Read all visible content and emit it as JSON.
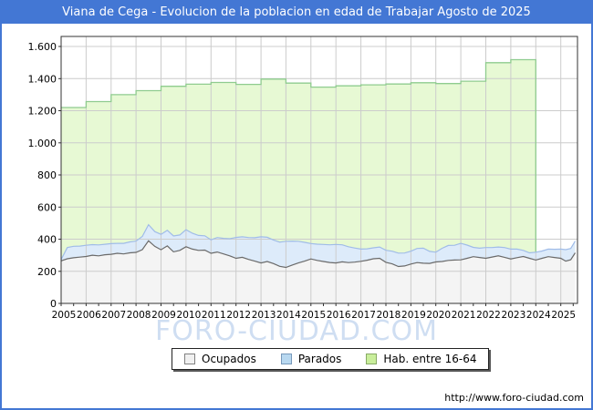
{
  "window": {
    "title": "Viana de Cega - Evolucion de la poblacion en edad de Trabajar Agosto de 2025"
  },
  "watermark": "FORO-CIUDAD.COM",
  "footer": {
    "url": "http://www.foro-ciudad.com"
  },
  "colors": {
    "frame_blue": "#4377d4",
    "grid": "#cccccc",
    "plot_border": "#333333",
    "hab_fill": "#e7f9d4",
    "hab_line": "#8fcc8f",
    "parados_fill": "#ddebfa",
    "parados_line": "#a0bce8",
    "ocupados_fill": "#f4f4f4",
    "ocupados_line": "#6a6a6a",
    "watermark_blue": "#cfdef2"
  },
  "legend": {
    "items": [
      {
        "label": "Ocupados",
        "fill": "#f0f0f0",
        "border": "#808080"
      },
      {
        "label": "Parados",
        "fill": "#b8d8f0",
        "border": "#7799bb"
      },
      {
        "label": "Hab. entre 16-64",
        "fill": "#c9ee9b",
        "border": "#88aa66"
      }
    ]
  },
  "chart_data": {
    "type": "area",
    "title": "Viana de Cega - Evolucion de la poblacion en edad de Trabajar Agosto de 2025",
    "xlabel": "",
    "ylabel": "",
    "grid": true,
    "legend_position": "bottom",
    "x_axis": {
      "range": [
        2005,
        2025.67
      ],
      "tick_years": [
        2005,
        2006,
        2007,
        2008,
        2009,
        2010,
        2011,
        2012,
        2013,
        2014,
        2015,
        2016,
        2017,
        2018,
        2019,
        2020,
        2021,
        2022,
        2023,
        2024,
        2025
      ],
      "tick_labels": [
        "2005",
        "2006",
        "2007",
        "2008",
        "2009",
        "2010",
        "2011",
        "2012",
        "2013",
        "2014",
        "2015",
        "2016",
        "2017",
        "2018",
        "2019",
        "2020",
        "2021",
        "2022",
        "2023",
        "2024",
        "2025"
      ],
      "minor_tick_interval": 0.5
    },
    "y_axis": {
      "range": [
        0,
        1600
      ],
      "tick_interval": 200,
      "tick_values": [
        0,
        200,
        400,
        600,
        800,
        1000,
        1200,
        1400,
        1600
      ],
      "tick_labels": [
        "0",
        "200",
        "400",
        "600",
        "800",
        "1.000",
        "1.200",
        "1.400",
        "1.600"
      ]
    },
    "hab_16_64": {
      "name": "Hab. entre 16-64",
      "style": "annual-steps",
      "years": [
        2005,
        2006,
        2007,
        2008,
        2009,
        2010,
        2011,
        2012,
        2013,
        2014,
        2015,
        2016,
        2017,
        2018,
        2019,
        2020,
        2021,
        2022,
        2023
      ],
      "values": [
        1220,
        1257,
        1300,
        1325,
        1352,
        1365,
        1376,
        1364,
        1397,
        1372,
        1347,
        1355,
        1361,
        1366,
        1374,
        1369,
        1384,
        1499,
        1518
      ],
      "end_year": 2024
    },
    "employment": {
      "note": "Parados band is drawn stacked on top of Ocupados; blue boundary = Ocupados + Parados",
      "x": [
        2005.0,
        2005.25,
        2005.5,
        2005.75,
        2006.0,
        2006.25,
        2006.5,
        2006.75,
        2007.0,
        2007.25,
        2007.5,
        2007.75,
        2008.0,
        2008.25,
        2008.5,
        2008.75,
        2009.0,
        2009.25,
        2009.5,
        2009.75,
        2010.0,
        2010.25,
        2010.5,
        2010.75,
        2011.0,
        2011.25,
        2011.5,
        2011.75,
        2012.0,
        2012.25,
        2012.5,
        2012.75,
        2013.0,
        2013.25,
        2013.5,
        2013.75,
        2014.0,
        2014.25,
        2014.5,
        2014.75,
        2015.0,
        2015.25,
        2015.5,
        2015.75,
        2016.0,
        2016.25,
        2016.5,
        2016.75,
        2017.0,
        2017.25,
        2017.5,
        2017.75,
        2018.0,
        2018.25,
        2018.5,
        2018.75,
        2019.0,
        2019.25,
        2019.5,
        2019.75,
        2020.0,
        2020.25,
        2020.5,
        2020.75,
        2021.0,
        2021.25,
        2021.5,
        2021.75,
        2022.0,
        2022.25,
        2022.5,
        2022.75,
        2023.0,
        2023.25,
        2023.5,
        2023.75,
        2024.0,
        2024.25,
        2024.5,
        2024.75,
        2025.0,
        2025.2,
        2025.4,
        2025.58
      ],
      "ocupados": [
        265,
        278,
        284,
        288,
        292,
        300,
        296,
        303,
        306,
        312,
        308,
        315,
        318,
        335,
        390,
        355,
        334,
        358,
        321,
        330,
        353,
        338,
        330,
        332,
        312,
        320,
        308,
        296,
        281,
        287,
        274,
        263,
        252,
        261,
        248,
        231,
        224,
        239,
        252,
        263,
        277,
        268,
        261,
        255,
        252,
        259,
        254,
        257,
        262,
        269,
        278,
        281,
        256,
        246,
        230,
        233,
        245,
        254,
        250,
        249,
        258,
        261,
        268,
        270,
        271,
        281,
        291,
        286,
        281,
        289,
        296,
        287,
        277,
        285,
        292,
        281,
        270,
        281,
        291,
        286,
        281,
        263,
        272,
        315
      ],
      "parados": [
        8,
        70,
        72,
        69,
        70,
        66,
        68,
        65,
        66,
        62,
        66,
        68,
        70,
        82,
        100,
        92,
        96,
        97,
        99,
        96,
        106,
        99,
        93,
        89,
        84,
        90,
        97,
        107,
        130,
        128,
        136,
        146,
        163,
        151,
        147,
        151,
        163,
        149,
        135,
        117,
        96,
        101,
        106,
        110,
        115,
        106,
        99,
        88,
        76,
        71,
        68,
        70,
        75,
        79,
        83,
        81,
        80,
        88,
        94,
        75,
        61,
        82,
        93,
        92,
        103,
        82,
        58,
        58,
        67,
        59,
        55,
        61,
        61,
        53,
        38,
        34,
        49,
        45,
        47,
        51,
        57,
        72,
        70,
        73
      ]
    }
  }
}
